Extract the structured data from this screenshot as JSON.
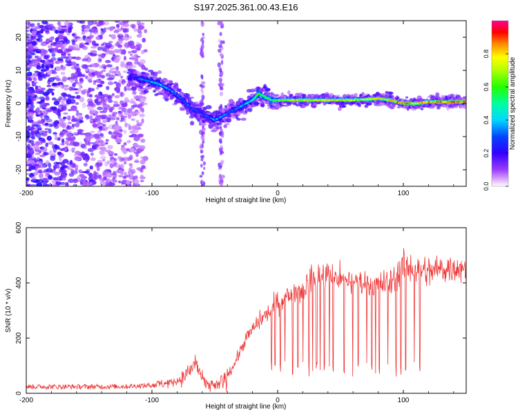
{
  "figure": {
    "title": "S197.2025.361.00.43.E16"
  },
  "chart_data": [
    {
      "type": "heatmap",
      "panel": "spectrogram",
      "xlabel": "Height of straight line (km)",
      "ylabel": "Frequency (Hz)",
      "xlim": [
        -200,
        150
      ],
      "ylim": [
        -25,
        25
      ],
      "x_ticks": [
        -200,
        -100,
        0,
        100
      ],
      "y_ticks": [
        -20,
        -10,
        0,
        10,
        20
      ],
      "x_tick_labels": [
        "-200",
        "-100",
        "0",
        "100"
      ],
      "y_tick_labels": [
        "-20",
        "-10",
        "0",
        "10",
        "20"
      ],
      "colorbar": {
        "label": "Normalized spectral amplitude",
        "range": [
          0,
          1
        ],
        "ticks": [
          0.0,
          0.2,
          0.4,
          0.6,
          0.8
        ],
        "tick_labels": [
          "0.0",
          "0.2",
          "0.4",
          "0.6",
          "0.8"
        ],
        "colormap": [
          "#ffffff",
          "#7a00ff",
          "#0000ff",
          "#00e5ff",
          "#00ff00",
          "#ffff00",
          "#ff0000",
          "#ff00a0"
        ]
      },
      "ridge": {
        "description": "Frequency of dominant signal vs height",
        "x": [
          -115,
          -105,
          -95,
          -85,
          -75,
          -70,
          -65,
          -60,
          -55,
          -50,
          -45,
          -40,
          -35,
          -30,
          -25,
          -20,
          -15,
          -10,
          -5,
          0,
          10,
          20,
          40,
          60,
          80,
          90,
          100,
          110,
          120,
          130,
          150
        ],
        "y": [
          8,
          7,
          6,
          4,
          1,
          -1,
          -2,
          -3,
          -4,
          -5,
          -4,
          -3,
          -2,
          -1,
          0,
          1,
          3,
          2,
          1,
          1,
          1,
          1,
          1,
          1,
          1.5,
          1,
          0,
          0,
          0.5,
          0.5,
          0.5
        ],
        "amplitude": [
          0.3,
          0.35,
          0.4,
          0.35,
          0.3,
          0.3,
          0.3,
          0.25,
          0.3,
          0.35,
          0.35,
          0.3,
          0.3,
          0.35,
          0.4,
          0.45,
          0.55,
          0.6,
          0.55,
          0.6,
          0.7,
          0.75,
          0.75,
          0.7,
          0.75,
          0.8,
          0.85,
          0.8,
          0.8,
          0.9,
          0.92
        ]
      }
    },
    {
      "type": "line",
      "panel": "snr",
      "xlabel": "Height of straight line (km)",
      "ylabel": "SNR (10 * v/v)",
      "xlim": [
        -200,
        150
      ],
      "ylim": [
        0,
        600
      ],
      "x_ticks": [
        -200,
        -100,
        0,
        100
      ],
      "y_ticks": [
        0,
        200,
        400,
        600
      ],
      "x_tick_labels": [
        "-200",
        "-100",
        "0",
        "100"
      ],
      "y_tick_labels": [
        "0",
        "200",
        "400",
        "600"
      ],
      "color": "#ee3333",
      "series": [
        {
          "name": "SNR",
          "x": [
            -200,
            -180,
            -160,
            -140,
            -120,
            -100,
            -90,
            -80,
            -75,
            -70,
            -65,
            -60,
            -55,
            -50,
            -45,
            -40,
            -35,
            -30,
            -25,
            -20,
            -15,
            -10,
            -5,
            0,
            10,
            20,
            30,
            40,
            50,
            60,
            70,
            80,
            90,
            100,
            110,
            120,
            130,
            140,
            150
          ],
          "y": [
            15,
            15,
            15,
            15,
            16,
            20,
            25,
            35,
            50,
            70,
            100,
            40,
            30,
            20,
            40,
            70,
            100,
            150,
            200,
            230,
            260,
            280,
            300,
            330,
            360,
            380,
            420,
            430,
            410,
            400,
            400,
            390,
            400,
            460,
            450,
            440,
            450,
            455,
            460
          ]
        }
      ]
    }
  ]
}
